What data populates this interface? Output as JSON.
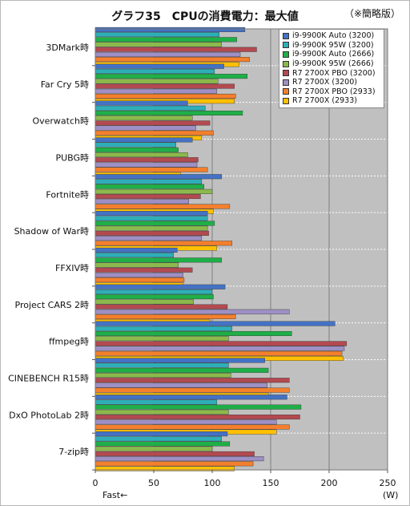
{
  "chart_data": {
    "type": "bar",
    "orientation": "horizontal",
    "title": "グラフ35　CPUの消費電力：最大値",
    "note": "（※簡略版）",
    "xlabel": "Fast←",
    "unit": "(W)",
    "xlim": [
      0,
      250
    ],
    "xticks": [
      0,
      50,
      100,
      150,
      200,
      250
    ],
    "grid": true,
    "legend_position": "top-right",
    "categories": [
      "3DMark時",
      "Far Cry 5時",
      "Overwatch時",
      "PUBG時",
      "Fortnite時",
      "Shadow of War時",
      "FFXIV時",
      "Project CARS 2時",
      "ffmpeg時",
      "CINEBENCH R15時",
      "DxO PhotoLab 2時",
      "7-zip時"
    ],
    "series": [
      {
        "name": "i9-9900K Auto (3200)",
        "color": "#4472c4",
        "values": [
          128,
          110,
          79,
          83,
          108,
          96,
          70,
          111,
          205,
          145,
          164,
          113
        ]
      },
      {
        "name": "i9-9900K 95W (3200)",
        "color": "#2eaeb8",
        "values": [
          106,
          102,
          94,
          69,
          91,
          96,
          67,
          100,
          117,
          114,
          104,
          108
        ]
      },
      {
        "name": "i9-9900K Auto (2666)",
        "color": "#1faf48",
        "values": [
          121,
          130,
          126,
          71,
          93,
          102,
          108,
          101,
          168,
          148,
          176,
          115
        ]
      },
      {
        "name": "i9-9900K 95W (2666)",
        "color": "#8cb94c",
        "values": [
          108,
          105,
          83,
          79,
          100,
          96,
          71,
          84,
          114,
          116,
          114,
          100
        ]
      },
      {
        "name": "R7 2700X PBO (3200)",
        "color": "#b24a50",
        "values": [
          138,
          119,
          98,
          88,
          90,
          97,
          83,
          113,
          215,
          166,
          175,
          136
        ]
      },
      {
        "name": "R7 2700X (3200)",
        "color": "#9e8fc4",
        "values": [
          124,
          104,
          86,
          87,
          80,
          91,
          75,
          166,
          213,
          147,
          155,
          144
        ]
      },
      {
        "name": "R7 2700X PBO (2933)",
        "color": "#f47f2c",
        "values": [
          132,
          120,
          101,
          96,
          115,
          117,
          76,
          120,
          211,
          166,
          166,
          135
        ]
      },
      {
        "name": "R7 2700X (2933)",
        "color": "#ffc000",
        "values": [
          123,
          119,
          91,
          73,
          101,
          104,
          75,
          98,
          212,
          148,
          155,
          119
        ]
      }
    ]
  }
}
